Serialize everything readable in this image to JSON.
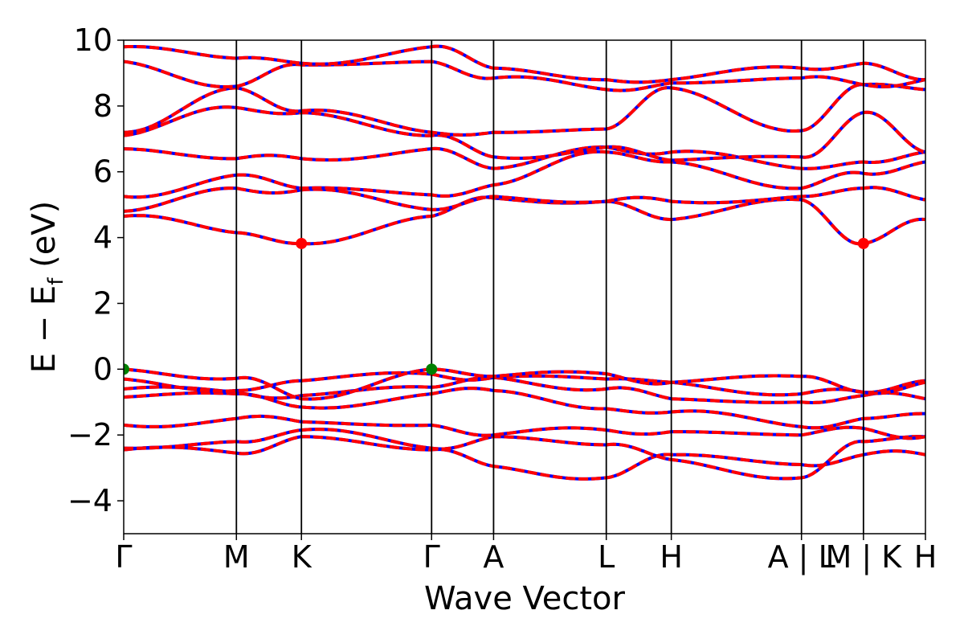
{
  "chart_data": {
    "type": "line",
    "xlabel": "Wave Vector",
    "ylabel": "E − E",
    "ylabel_subscript": "f",
    "ylabel_unit": "(eV)",
    "ylim": [
      -5,
      10
    ],
    "yticks": [
      -4,
      -2,
      0,
      2,
      4,
      6,
      8,
      10
    ],
    "ytick_labels": [
      "−4",
      "−2",
      "0",
      "2",
      "4",
      "6",
      "8",
      "10"
    ],
    "grid": false,
    "kpath": [
      {
        "label": "Γ",
        "x": 0.0
      },
      {
        "label": "M",
        "x": 1.0
      },
      {
        "label": "K",
        "x": 1.577
      },
      {
        "label": "Γ",
        "x": 2.732
      },
      {
        "label": "A",
        "x": 3.282
      },
      {
        "label": "L",
        "x": 4.282
      },
      {
        "label": "H",
        "x": 4.859
      },
      {
        "label": "A | L",
        "x": 6.014
      },
      {
        "label": "M | K",
        "x": 6.564
      },
      {
        "label": "H",
        "x": 7.114
      }
    ],
    "xlim": [
      0,
      7.114
    ],
    "line_colors": {
      "spin_up": "#0000ff",
      "spin_down": "#ff0000"
    },
    "band_extrema": [
      {
        "kind": "cbm",
        "x": 1.577,
        "y": 3.82,
        "color": "#ff0000"
      },
      {
        "kind": "cbm",
        "x": 6.564,
        "y": 3.82,
        "color": "#ff0000"
      },
      {
        "kind": "vbm",
        "x": 0.0,
        "y": 0.0,
        "color": "#008000"
      },
      {
        "kind": "vbm",
        "x": 2.732,
        "y": 0.0,
        "color": "#008000"
      }
    ],
    "band_nodes": [
      [
        -2.45,
        -2.55,
        -2.05,
        -2.45,
        -2.95,
        -3.3,
        -2.6,
        -2.9,
        -2.6,
        -2.6
      ],
      [
        -2.4,
        -2.2,
        -1.85,
        -2.4,
        -2.05,
        -2.3,
        -2.75,
        -3.3,
        -2.2,
        -2.05
      ],
      [
        -1.7,
        -1.5,
        -1.6,
        -1.7,
        -2.0,
        -1.85,
        -1.9,
        -2.0,
        -1.8,
        -2.05
      ],
      [
        -0.85,
        -0.75,
        -1.15,
        -0.75,
        -0.65,
        -1.2,
        -1.3,
        -1.75,
        -1.5,
        -1.35
      ],
      [
        -0.6,
        -0.7,
        -0.8,
        -0.55,
        -0.25,
        -0.6,
        -0.9,
        -1.0,
        -0.8,
        -0.9
      ],
      [
        -0.3,
        -0.65,
        -0.35,
        -0.15,
        -0.25,
        -0.3,
        -0.4,
        -0.75,
        -0.7,
        -0.35
      ],
      [
        0.0,
        -0.28,
        -0.9,
        0.0,
        -0.22,
        -0.14,
        -0.4,
        -0.22,
        -0.7,
        -0.4
      ],
      [
        4.65,
        4.15,
        3.82,
        4.65,
        5.2,
        5.1,
        4.55,
        5.15,
        3.82,
        4.55
      ],
      [
        4.8,
        5.5,
        5.45,
        4.85,
        5.25,
        5.1,
        5.1,
        5.25,
        5.5,
        5.15
      ],
      [
        5.25,
        5.9,
        5.5,
        5.3,
        5.6,
        6.6,
        6.3,
        5.5,
        5.95,
        6.3
      ],
      [
        6.7,
        6.4,
        6.4,
        6.7,
        6.1,
        6.75,
        6.6,
        6.1,
        6.3,
        6.6
      ],
      [
        7.1,
        7.95,
        7.8,
        7.1,
        6.45,
        6.75,
        6.35,
        6.45,
        7.8,
        6.6
      ],
      [
        7.2,
        8.55,
        7.85,
        7.2,
        7.2,
        7.3,
        8.55,
        7.25,
        8.65,
        8.5
      ],
      [
        9.35,
        8.6,
        9.25,
        9.35,
        8.85,
        8.5,
        8.7,
        8.85,
        8.65,
        8.8
      ],
      [
        9.8,
        9.45,
        9.3,
        9.8,
        9.15,
        8.8,
        8.8,
        9.15,
        9.3,
        8.8
      ]
    ]
  }
}
